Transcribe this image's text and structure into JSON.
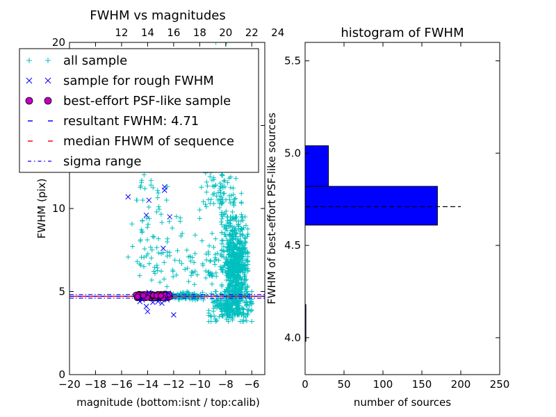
{
  "chart_data": [
    {
      "type": "scatter",
      "title": "FWHM vs magnitudes",
      "xlabel": "magnitude (bottom:isnt / top:calib)",
      "ylabel": "FWHM (pix)",
      "xlim": [
        -20,
        -5
      ],
      "ylim": [
        0,
        20
      ],
      "x_ticks": [
        -20,
        -18,
        -16,
        -14,
        -12,
        -10,
        -8,
        -6
      ],
      "x_tick_labels": [
        "−20",
        "−18",
        "−16",
        "−14",
        "−12",
        "−10",
        "−8",
        "−6"
      ],
      "y_ticks": [
        0,
        5,
        10,
        15,
        20
      ],
      "y_tick_labels": [
        "0",
        "5",
        "10",
        "15",
        "20"
      ],
      "top_axis": {
        "label_offset": 28,
        "ticks": [
          12,
          14,
          16,
          18,
          20,
          22,
          24
        ],
        "tick_labels": [
          "12",
          "14",
          "16",
          "18",
          "20",
          "22",
          "24"
        ]
      },
      "colors": {
        "all": "#00bfbf",
        "rough": "#0000ff",
        "best": "#bf00bf",
        "best_edge": "#000000",
        "resultant": "#0000ff",
        "median": "#ff0000",
        "sigma": "#0000ff"
      },
      "legend": {
        "placement": "upper-left",
        "entries": [
          {
            "key": "all",
            "label": "all sample",
            "marker": "+"
          },
          {
            "key": "rough",
            "label": "sample for rough FWHM",
            "marker": "x"
          },
          {
            "key": "best",
            "label": "best-effort PSF-like sample",
            "marker": "o"
          },
          {
            "key": "resultant",
            "label": "resultant FWHM: 4.71",
            "marker": "dashed"
          },
          {
            "key": "median",
            "label": "median FHWM of sequence",
            "marker": "dashed"
          },
          {
            "key": "sigma",
            "label": "sigma range",
            "marker": "dashdot"
          }
        ]
      },
      "resultant_fwhm": 4.71,
      "median_fwhm": 4.71,
      "sigma_range": [
        4.6,
        4.82
      ],
      "rough_sample": [
        [
          -15.5,
          10.7
        ],
        [
          -12.7,
          11.1
        ],
        [
          -12.7,
          11.3
        ],
        [
          -14.1,
          9.6
        ],
        [
          -13.9,
          10.5
        ],
        [
          -12.3,
          9.5
        ],
        [
          -12.8,
          7.6
        ],
        [
          -14.1,
          4.1
        ],
        [
          -14.0,
          3.8
        ],
        [
          -12.0,
          3.6
        ],
        [
          -13.2,
          4.4
        ],
        [
          -12.9,
          4.3
        ],
        [
          -14.4,
          4.5
        ],
        [
          -13.6,
          4.35
        ],
        [
          -12.5,
          4.5
        ],
        [
          -13.9,
          4.95
        ],
        [
          -12.4,
          4.9
        ],
        [
          -14.6,
          4.4
        ]
      ],
      "best_effort_range": {
        "x": [
          -14.9,
          -12.3
        ],
        "y": [
          4.6,
          4.85
        ],
        "count": 170
      },
      "all_sample_clusters": [
        {
          "x": [
            -8.3,
            -6.3
          ],
          "y": [
            3.6,
            9.5
          ],
          "count": 650
        },
        {
          "x": [
            -9.3,
            -6.0
          ],
          "y": [
            3.2,
            5.0
          ],
          "count": 250
        },
        {
          "x": [
            -10.0,
            -6.8
          ],
          "y": [
            9.0,
            13.0
          ],
          "count": 90
        },
        {
          "x": [
            -9.5,
            -7.0
          ],
          "y": [
            13.0,
            20.0
          ],
          "count": 40
        },
        {
          "x": [
            -15.5,
            -11.5
          ],
          "y": [
            4.9,
            10.5
          ],
          "count": 70
        },
        {
          "x": [
            -15.5,
            -12.5
          ],
          "y": [
            10.5,
            12.5
          ],
          "count": 14
        },
        {
          "x": [
            -13.0,
            -9.5
          ],
          "y": [
            4.5,
            4.95
          ],
          "count": 130
        },
        {
          "x": [
            -12.5,
            -6.5
          ],
          "y": [
            5.0,
            8.5
          ],
          "count": 80
        }
      ]
    },
    {
      "type": "bar",
      "orientation": "horizontal",
      "title": "histogram of FWHM",
      "xlabel": "number of sources",
      "ylabel": "FWHM of best-effort PSF-like sources",
      "xlim": [
        0,
        250
      ],
      "ylim": [
        3.8,
        5.6
      ],
      "x_ticks": [
        0,
        50,
        100,
        150,
        200,
        250
      ],
      "x_tick_labels": [
        "0",
        "50",
        "100",
        "150",
        "200",
        "250"
      ],
      "y_ticks": [
        4.0,
        4.5,
        5.0,
        5.5
      ],
      "y_tick_labels": [
        "4.0",
        "4.5",
        "5.0",
        "5.5"
      ],
      "bins": [
        {
          "low": 3.98,
          "high": 4.18,
          "count": 1
        },
        {
          "low": 4.61,
          "high": 4.82,
          "count": 170
        },
        {
          "low": 4.82,
          "high": 5.04,
          "count": 30
        }
      ],
      "bar_color": "#0000ff",
      "resultant_fwhm": 4.71,
      "resultant_line_xmax": 200
    }
  ]
}
